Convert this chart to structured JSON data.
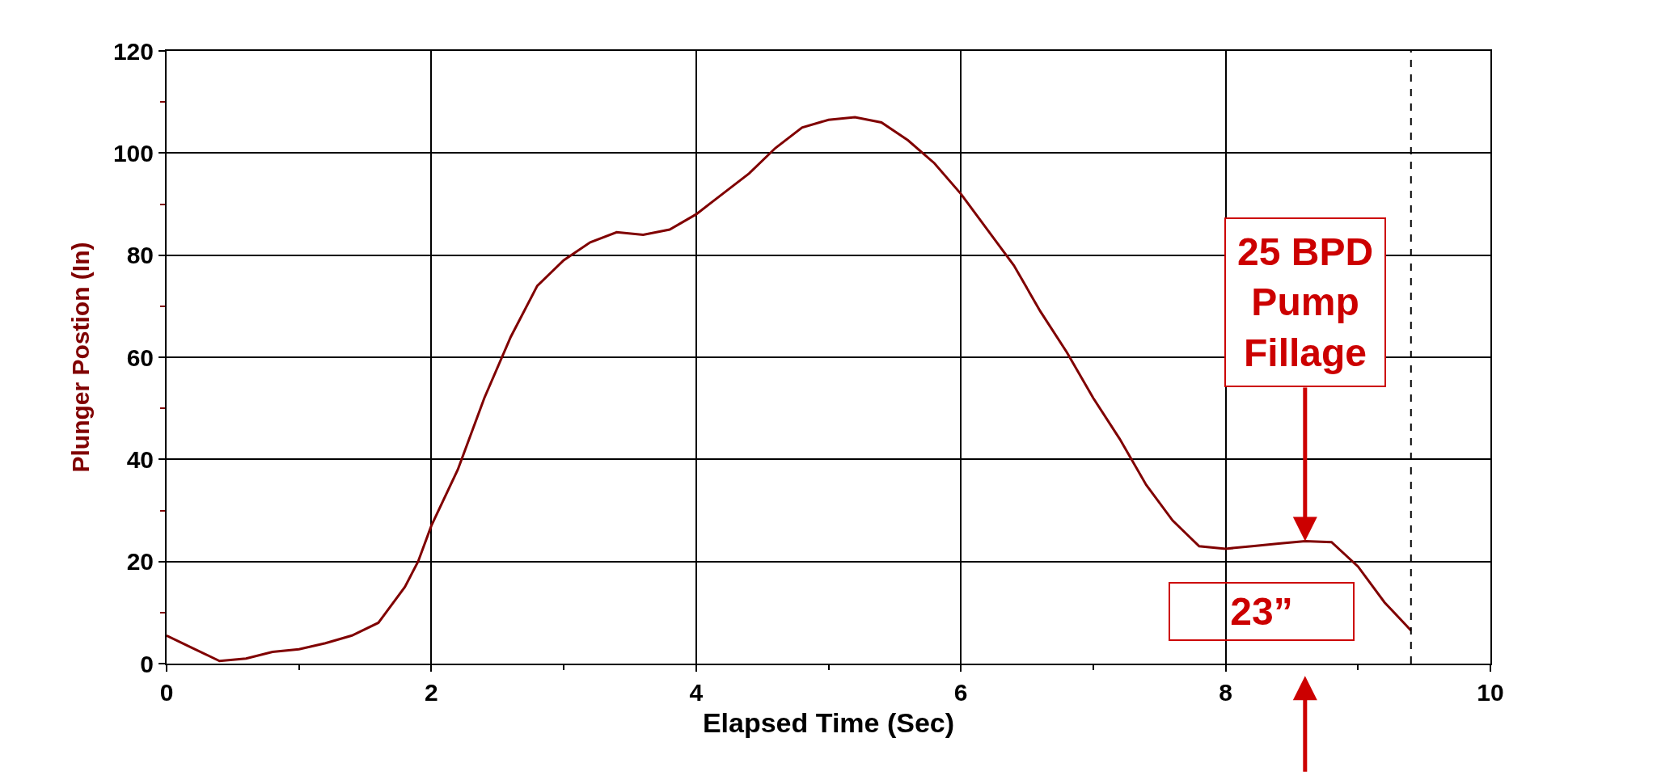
{
  "chart_data": {
    "type": "line",
    "xlabel": "Elapsed Time (Sec)",
    "ylabel": "Plunger Postion (In)",
    "x": [
      0,
      0.2,
      0.4,
      0.6,
      0.8,
      1.0,
      1.2,
      1.4,
      1.6,
      1.8,
      1.9,
      2.0,
      2.2,
      2.4,
      2.6,
      2.8,
      3.0,
      3.2,
      3.4,
      3.6,
      3.8,
      4.0,
      4.2,
      4.4,
      4.6,
      4.8,
      5.0,
      5.2,
      5.4,
      5.6,
      5.8,
      6.0,
      6.2,
      6.4,
      6.6,
      6.8,
      7.0,
      7.2,
      7.4,
      7.6,
      7.8,
      8.0,
      8.2,
      8.4,
      8.6,
      8.8,
      9.0,
      9.2,
      9.4
    ],
    "series": [
      {
        "color": "#800000",
        "values": [
          5.5,
          3,
          0.5,
          1,
          2.3,
          2.8,
          4,
          5.5,
          8,
          15,
          20,
          27,
          38,
          52,
          64,
          74,
          79,
          82.5,
          84.5,
          84,
          85,
          88,
          92,
          96,
          101,
          105,
          106.5,
          107,
          106,
          102.5,
          98,
          92,
          85,
          78,
          69,
          61,
          52,
          44,
          35,
          28,
          23,
          22.5,
          23,
          23.5,
          24,
          23.8,
          19,
          12,
          6.5
        ]
      }
    ],
    "xlim": [
      0,
      10
    ],
    "xticks": [
      0,
      2,
      4,
      6,
      8,
      10
    ],
    "ylim": [
      0,
      120
    ],
    "yticks": [
      0,
      20,
      40,
      60,
      80,
      100,
      120
    ],
    "grid": true,
    "marker": "none",
    "line_style": "solid",
    "ref_lines": [
      {
        "axis": "x",
        "value": 9.4,
        "label": null,
        "color": "#000000",
        "line_style": "dashed"
      }
    ],
    "annotations": [
      {
        "text": "25 BPD\nPump\nFillage",
        "x": 8.6,
        "y": 24
      },
      "23”"
    ]
  }
}
